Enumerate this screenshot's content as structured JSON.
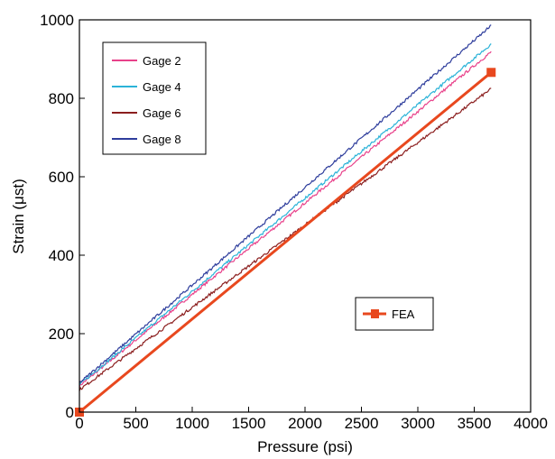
{
  "chart_data": {
    "type": "line",
    "xlabel": "Pressure (psi)",
    "ylabel": "Strain (μst)",
    "xlim": [
      0,
      4000
    ],
    "ylim": [
      0,
      1000
    ],
    "x_ticks": [
      0,
      500,
      1000,
      1500,
      2000,
      2500,
      3000,
      3500,
      4000
    ],
    "y_ticks": [
      0,
      200,
      400,
      600,
      800,
      1000
    ],
    "grid": false,
    "legend_placement": "top-left",
    "series": [
      {
        "name": "Gage 2",
        "color": "#e8418a",
        "x": [
          0,
          3650
        ],
        "y": [
          67,
          918
        ]
      },
      {
        "name": "Gage 4",
        "color": "#2bb3d8",
        "x": [
          0,
          3650
        ],
        "y": [
          70,
          938
        ]
      },
      {
        "name": "Gage 6",
        "color": "#8b1e1e",
        "x": [
          0,
          3650
        ],
        "y": [
          57,
          824
        ]
      },
      {
        "name": "Gage 8",
        "color": "#2e3d9c",
        "x": [
          0,
          3650
        ],
        "y": [
          74,
          985
        ]
      }
    ],
    "fea": {
      "name": "FEA",
      "color": "#e8481e",
      "x": [
        0,
        3650
      ],
      "y": [
        0,
        866
      ]
    }
  }
}
